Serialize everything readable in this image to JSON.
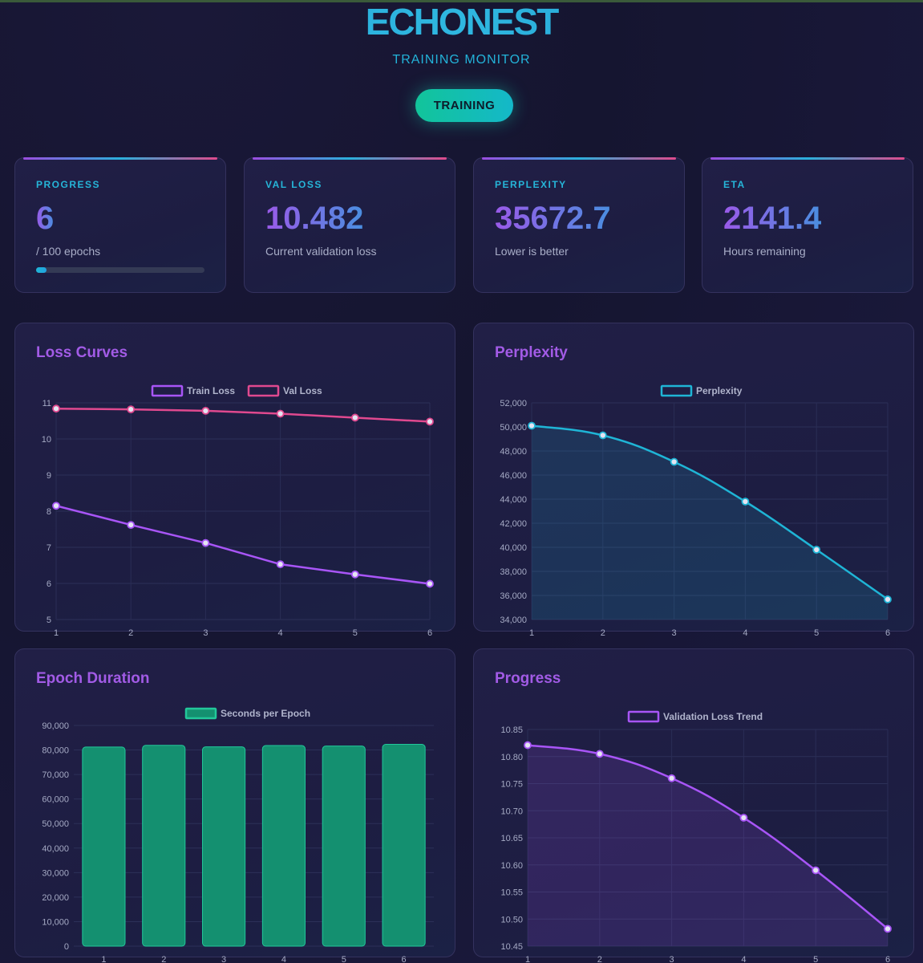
{
  "brand": "ECHONEST",
  "subtitle": "TRAINING MONITOR",
  "status": "TRAINING",
  "stats": [
    {
      "label": "PROGRESS",
      "value": "6",
      "sub": "/ 100 epochs",
      "progress_fraction": 0.06
    },
    {
      "label": "VAL LOSS",
      "value": "10.482",
      "sub": "Current validation loss"
    },
    {
      "label": "PERPLEXITY",
      "value": "35672.7",
      "sub": "Lower is better"
    },
    {
      "label": "ETA",
      "value": "2141.4",
      "sub": "Hours remaining"
    }
  ],
  "charts": {
    "loss": {
      "title": "Loss Curves"
    },
    "perplexity": {
      "title": "Perplexity"
    },
    "duration": {
      "title": "Epoch Duration"
    },
    "progress": {
      "title": "Progress"
    }
  },
  "colors": {
    "train": "#a855f7",
    "val": "#e0498f",
    "perplexity": "#1fb5d6",
    "duration": "#149070",
    "progress": "#a855f7"
  },
  "chart_data": [
    {
      "id": "loss",
      "type": "line",
      "title": "Loss Curves",
      "x": [
        1,
        2,
        3,
        4,
        5,
        6
      ],
      "series": [
        {
          "name": "Train Loss",
          "values": [
            8.15,
            7.62,
            7.12,
            6.53,
            6.25,
            5.99
          ]
        },
        {
          "name": "Val Loss",
          "values": [
            10.84,
            10.82,
            10.78,
            10.7,
            10.59,
            10.48
          ]
        }
      ],
      "ylim": [
        5,
        11
      ],
      "yticks": [
        "5",
        "6",
        "7",
        "8",
        "9",
        "10",
        "11"
      ],
      "grid": true,
      "legend": "top"
    },
    {
      "id": "perplexity",
      "type": "area",
      "title": "Perplexity",
      "x": [
        1,
        2,
        3,
        4,
        5,
        6
      ],
      "series": [
        {
          "name": "Perplexity",
          "values": [
            50100,
            49300,
            47100,
            43800,
            39800,
            35672.7
          ]
        }
      ],
      "ylim": [
        34000,
        52000
      ],
      "yticks": [
        "34,000",
        "36,000",
        "38,000",
        "40,000",
        "42,000",
        "44,000",
        "46,000",
        "48,000",
        "50,000",
        "52,000"
      ],
      "grid": true,
      "legend": "top"
    },
    {
      "id": "duration",
      "type": "bar",
      "title": "Epoch Duration",
      "categories": [
        "1",
        "2",
        "3",
        "4",
        "5",
        "6"
      ],
      "series": [
        {
          "name": "Seconds per Epoch",
          "values": [
            81200,
            81900,
            81300,
            81800,
            81600,
            82300
          ]
        }
      ],
      "ylim": [
        0,
        90000
      ],
      "yticks": [
        "0",
        "10,000",
        "20,000",
        "30,000",
        "40,000",
        "50,000",
        "60,000",
        "70,000",
        "80,000",
        "90,000"
      ],
      "grid": true,
      "legend": "top"
    },
    {
      "id": "progress",
      "type": "area",
      "title": "Progress",
      "x": [
        1,
        2,
        3,
        4,
        5,
        6
      ],
      "series": [
        {
          "name": "Validation Loss Trend",
          "values": [
            10.821,
            10.805,
            10.76,
            10.687,
            10.59,
            10.482
          ]
        }
      ],
      "ylim": [
        10.45,
        10.85
      ],
      "yticks": [
        "10.45",
        "10.50",
        "10.55",
        "10.60",
        "10.65",
        "10.70",
        "10.75",
        "10.80",
        "10.85"
      ],
      "grid": true,
      "legend": "top"
    }
  ]
}
